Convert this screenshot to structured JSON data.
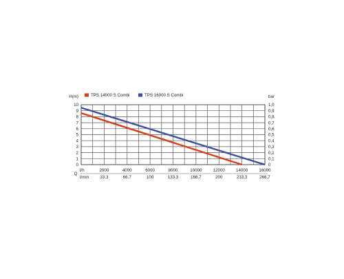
{
  "chart_data": {
    "type": "line",
    "x": [
      0,
      2000,
      4000,
      6000,
      8000,
      10000,
      12000,
      14000,
      16000
    ],
    "x_tick_labels": [
      "0",
      "2000",
      "4000",
      "6000",
      "8000",
      "10000",
      "12000",
      "14000",
      "16000"
    ],
    "x_unit_label": "l/h",
    "x2_tick_labels": [
      "0",
      "33,3",
      "66,7",
      "100",
      "133,3",
      "166,7",
      "200",
      "233,3",
      "266,7"
    ],
    "x2_unit_label": "l/min",
    "q_label": "Q",
    "xlim": [
      0,
      16000
    ],
    "y_tick_labels": [
      "0",
      "1",
      "2",
      "3",
      "4",
      "5",
      "6",
      "7",
      "8",
      "9",
      "10"
    ],
    "ylabel": "H(m)",
    "ylim": [
      0,
      10
    ],
    "y2_tick_labels": [
      "0",
      "0,1",
      "0,2",
      "0,3",
      "0,4",
      "0,5",
      "0,6",
      "0,7",
      "0,8",
      "0,9",
      "1,0"
    ],
    "y2label": "bar",
    "grid": true,
    "legend_placement": "top-left",
    "series": [
      {
        "name": "TPS 14000 S Combi",
        "color": "#d2401e",
        "points": [
          [
            0,
            8.6
          ],
          [
            14000,
            0
          ]
        ]
      },
      {
        "name": "TPS 16000 S Combi",
        "color": "#3d4f9c",
        "points": [
          [
            0,
            9.5
          ],
          [
            16000,
            0
          ]
        ]
      }
    ]
  }
}
